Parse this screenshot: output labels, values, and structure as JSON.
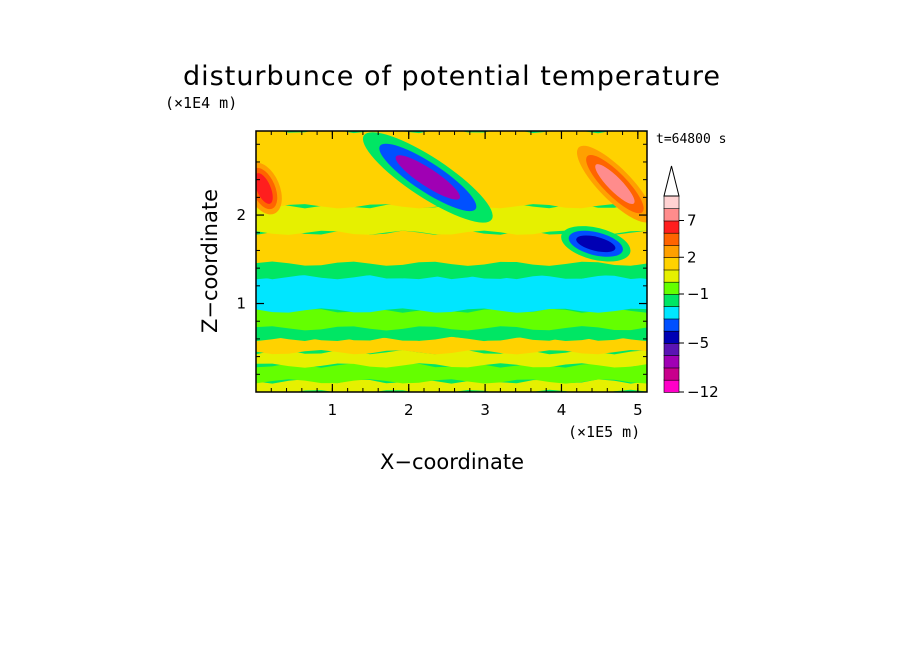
{
  "chart_data": {
    "type": "heatmap",
    "title": "disturbunce of potential temperature",
    "xlabel": "X−coordinate",
    "ylabel": "Z−coordinate",
    "x_unit": "(×1E5 m)",
    "z_unit": "(×1E4 m)",
    "time_label": "t=64800 s",
    "xlim": [
      0,
      5.12
    ],
    "zlim": [
      0,
      2.95
    ],
    "x_ticks": [
      1,
      2,
      3,
      4,
      5
    ],
    "x_tick_labels": [
      "1",
      "2",
      "3",
      "4",
      "5"
    ],
    "z_ticks": [
      1,
      2
    ],
    "z_tick_labels": [
      "1",
      "2"
    ],
    "colorbar": {
      "levels": [
        -12,
        -10,
        -8,
        -6,
        -5,
        -4,
        -3,
        -2,
        -1,
        0,
        1,
        2,
        3,
        5,
        7,
        9,
        11
      ],
      "labeled_levels": [
        -12,
        -5,
        -1,
        2,
        7
      ],
      "labeled_text": [
        "−12",
        "−5",
        "−1",
        "2",
        "7"
      ],
      "colors": [
        "#ff00c8",
        "#c8008c",
        "#a000b4",
        "#5a14b4",
        "#0000b4",
        "#0050ff",
        "#00e6ff",
        "#00e664",
        "#64ff00",
        "#e6f000",
        "#ffd200",
        "#ffa000",
        "#ff6400",
        "#ff1e1e",
        "#ff8c8c",
        "#ffd2d2"
      ],
      "extend": "max"
    },
    "field_regions": [
      {
        "z_from": 0.0,
        "z_to": 0.12,
        "value_class": "0 to 1"
      },
      {
        "z_from": 0.12,
        "z_to": 0.3,
        "value_class": "-1 to 0"
      },
      {
        "z_from": 0.3,
        "z_to": 0.45,
        "value_class": "0 to 1"
      },
      {
        "z_from": 0.45,
        "z_to": 0.6,
        "value_class": "1 to 2"
      },
      {
        "z_from": 0.6,
        "z_to": 0.72,
        "value_class": "-2 to -1"
      },
      {
        "z_from": 0.72,
        "z_to": 0.92,
        "value_class": "-1 to 0"
      },
      {
        "z_from": 0.92,
        "z_to": 1.3,
        "value_class": "-3 to -2"
      },
      {
        "z_from": 1.3,
        "z_to": 1.45,
        "value_class": "-2 to -1"
      },
      {
        "z_from": 1.45,
        "z_to": 1.8,
        "value_class": "1 to 2"
      },
      {
        "z_from": 1.8,
        "z_to": 2.1,
        "value_class": "0 to 1"
      },
      {
        "z_from": 2.1,
        "z_to": 2.95,
        "value_class": "1 to 2"
      }
    ],
    "features": [
      {
        "kind": "cold_band",
        "x": [
          1.5,
          3.0
        ],
        "z": [
          2.85,
          2.0
        ],
        "min_class": "-8 to -6"
      },
      {
        "kind": "cold_patch",
        "x": [
          4.1,
          4.8
        ],
        "z": [
          1.75,
          1.6
        ],
        "min_class": "-5 to -4"
      },
      {
        "kind": "warm_patch",
        "x": [
          4.3,
          5.1
        ],
        "z": [
          2.7,
          2.0
        ],
        "max_class": "7 to 9"
      },
      {
        "kind": "warm_patch",
        "x": [
          0.0,
          0.2
        ],
        "z": [
          2.5,
          2.1
        ],
        "max_class": "5 to 7"
      }
    ]
  }
}
